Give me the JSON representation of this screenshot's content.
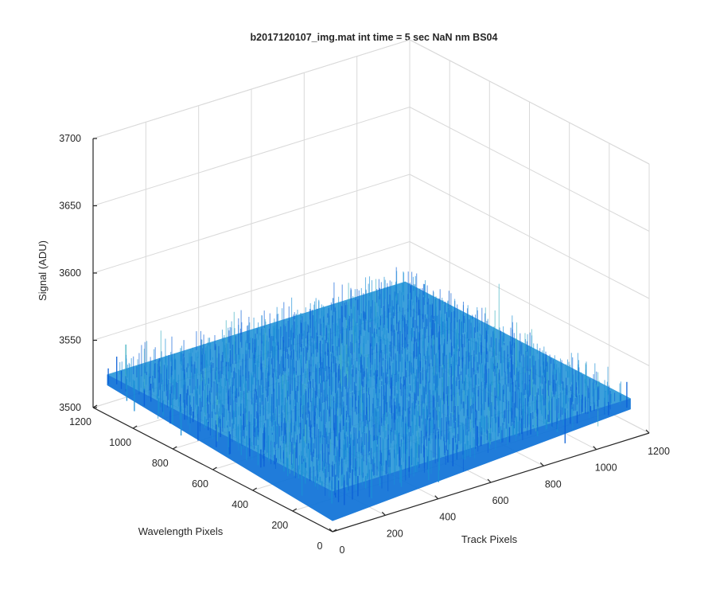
{
  "chart_data": {
    "type": "surface",
    "title": "b2017120107_img.mat int time = 5 sec  NaN nm BS04",
    "xlabel": "Track Pixels",
    "ylabel": "Wavelength Pixels",
    "zlabel": "Signal (ADU)",
    "x_ticks": [
      0,
      200,
      400,
      600,
      800,
      1000,
      1200
    ],
    "y_ticks": [
      0,
      200,
      400,
      600,
      800,
      1000,
      1200
    ],
    "z_ticks": [
      3500,
      3550,
      3600,
      3650,
      3700
    ],
    "xlim": [
      0,
      1200
    ],
    "ylim": [
      0,
      1200
    ],
    "zlim": [
      3500,
      3700
    ],
    "data_extent": {
      "x": [
        0,
        1130
      ],
      "y": [
        0,
        1130
      ]
    },
    "surface_level": 3530,
    "noise_range": [
      3510,
      3600
    ],
    "grid": true,
    "colormap": "parula",
    "colors": {
      "surface_low": "#0a5fd8",
      "surface_mid": "#1a8fd6",
      "surface_high": "#3fb0c0"
    }
  }
}
